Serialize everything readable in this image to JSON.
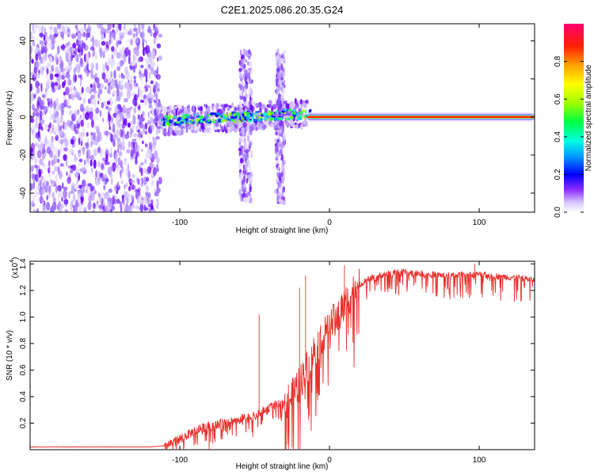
{
  "title": "C2E1.2025.086.20.35.G24",
  "chart_data": [
    {
      "type": "heatmap",
      "xlabel": "Height of straight line (km)",
      "ylabel": "Frequency (Hz)",
      "xlim": [
        -200,
        137
      ],
      "ylim": [
        -50,
        49
      ],
      "xticks": [
        -100,
        0,
        100
      ],
      "yticks": [
        -40,
        -20,
        0,
        20,
        40
      ],
      "colorbar": {
        "label": "Normalized spectral amplitude",
        "range": [
          0,
          1
        ],
        "ticks": [
          "0.0",
          "0.2",
          "0.4",
          "0.6",
          "0.8"
        ],
        "colormap": [
          "#ffffff",
          "#b090ff",
          "#6000ff",
          "#0000ff",
          "#00b0ff",
          "#00ffc0",
          "#00ff00",
          "#c0ff00",
          "#ffff00",
          "#ff8000",
          "#ff0000",
          "#ff0080"
        ]
      },
      "features": {
        "noise_region_x": [
          -200,
          -113
        ],
        "carrier_line_x": [
          -15,
          137
        ],
        "carrier_frequency_hz": 0,
        "spread_bands_x": [
          [
            -60,
            -52
          ],
          [
            -36,
            -30
          ]
        ]
      }
    },
    {
      "type": "line",
      "xlabel": "Height of straight line (km)",
      "ylabel": "SNR (10 * v/v)",
      "scale_label": "(x10",
      "scale_exp": "4",
      "xlim": [
        -200,
        137
      ],
      "ylim": [
        0,
        1.42
      ],
      "xticks": [
        -100,
        0,
        100
      ],
      "yticks": [
        "0.2",
        "0.4",
        "0.6",
        "0.8",
        "1.0",
        "1.2",
        "1.4"
      ],
      "line_color": "#e8302c",
      "series": [
        {
          "x": [
            -200,
            -180,
            -160,
            -140,
            -120,
            -110,
            -100,
            -90,
            -80,
            -70,
            -60,
            -50,
            -40,
            -30,
            -25,
            -20,
            -15,
            -10,
            -5,
            0,
            5,
            10,
            15,
            20,
            25,
            30,
            40,
            50,
            60,
            70,
            80,
            90,
            100,
            110,
            120,
            130,
            137
          ],
          "values": [
            0.02,
            0.02,
            0.02,
            0.02,
            0.02,
            0.03,
            0.08,
            0.14,
            0.18,
            0.2,
            0.23,
            0.25,
            0.32,
            0.35,
            0.4,
            0.5,
            0.62,
            0.75,
            0.85,
            0.93,
            1.0,
            1.1,
            1.18,
            1.24,
            1.28,
            1.3,
            1.33,
            1.34,
            1.33,
            1.32,
            1.31,
            1.32,
            1.32,
            1.31,
            1.3,
            1.29,
            1.28
          ]
        }
      ],
      "spikes": [
        [
          -47,
          1.02
        ],
        [
          -20,
          1.22
        ],
        [
          -16,
          1.31
        ],
        [
          10,
          1.39
        ],
        [
          97,
          1.4
        ]
      ]
    }
  ]
}
